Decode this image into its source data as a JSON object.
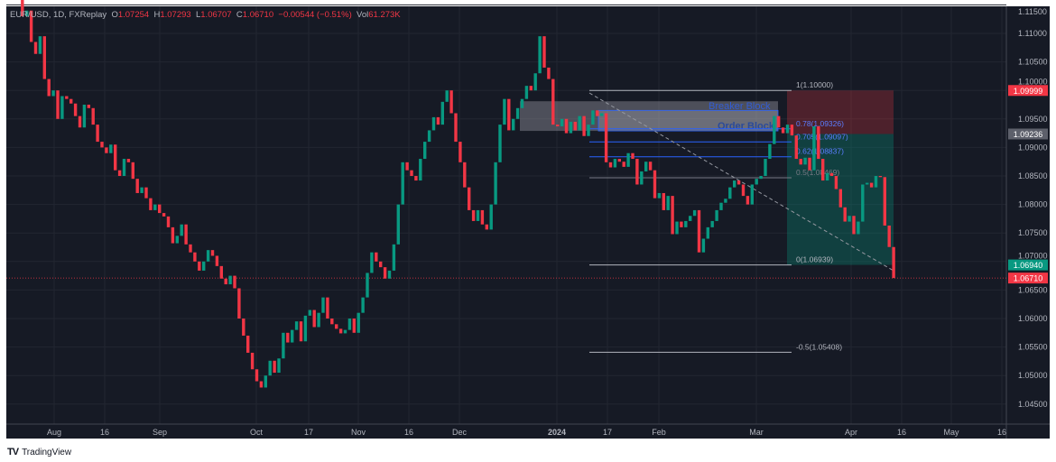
{
  "header": {
    "symbol": "EUR/USD, 1D, FXReplay",
    "o_label": "O",
    "open": "1.07254",
    "h_label": "H",
    "high": "1.07293",
    "l_label": "L",
    "low": "1.06707",
    "c_label": "C",
    "close": "1.06710",
    "change": "−0.00544 (−0.51%)",
    "vol_label": "Vol",
    "volume": "61.273K"
  },
  "branding": {
    "logo_text": "TradingView"
  },
  "colors": {
    "background": "#161a25",
    "grid": "#222631",
    "up": "#089981",
    "down": "#f23645",
    "text": "#b2b5be",
    "fib_blue": "#2962ff"
  },
  "chart_data": {
    "type": "candlestick",
    "symbol": "EUR/USD",
    "interval": "1D",
    "ylim": [
      1.0415,
      1.1148
    ],
    "y_ticks": [
      "1.11500",
      "1.11000",
      "1.10500",
      "1.10000",
      "1.09500",
      "1.09000",
      "1.08500",
      "1.08000",
      "1.07500",
      "1.07000",
      "1.06500",
      "1.06000",
      "1.05500",
      "1.05000",
      "1.04500"
    ],
    "x_ticks": [
      "Aug",
      "16",
      "Sep",
      "Oct",
      "17",
      "Nov",
      "16",
      "Dec",
      "2024",
      "17",
      "Feb",
      "Mar",
      "Apr",
      "16",
      "May",
      "16"
    ],
    "first_open": 1.125,
    "closes": [
      1.1225,
      1.119,
      1.113,
      1.114,
      1.1085,
      1.1064,
      1.1095,
      1.102,
      1.099,
      1.1,
      1.095,
      1.099,
      1.0985,
      1.0977,
      1.0955,
      1.0935,
      1.0975,
      1.0969,
      1.094,
      1.091,
      1.09,
      1.089,
      1.0905,
      1.086,
      1.085,
      1.088,
      1.0874,
      1.0845,
      1.082,
      1.083,
      1.0811,
      1.079,
      1.08,
      1.0785,
      1.0779,
      1.076,
      1.0732,
      1.0745,
      1.0765,
      1.073,
      1.0716,
      1.07,
      1.0684,
      1.07,
      1.072,
      1.071,
      1.0692,
      1.067,
      1.066,
      1.0675,
      1.0653,
      1.06,
      1.057,
      1.054,
      1.0511,
      1.049,
      1.0479,
      1.05,
      1.0526,
      1.0505,
      1.053,
      1.0575,
      1.0558,
      1.058,
      1.0595,
      1.056,
      1.0605,
      1.0615,
      1.0585,
      1.061,
      1.0637,
      1.06,
      1.059,
      1.0582,
      1.0574,
      1.058,
      1.06,
      1.0575,
      1.061,
      1.0637,
      1.068,
      1.0716,
      1.07,
      1.069,
      1.067,
      1.0684,
      1.073,
      1.08,
      1.0874,
      1.086,
      1.085,
      1.0842,
      1.088,
      1.091,
      1.093,
      1.0953,
      1.094,
      1.098,
      1.1,
      1.096,
      1.091,
      1.0874,
      1.083,
      1.079,
      1.0771,
      1.079,
      1.0765,
      1.0756,
      1.08,
      1.0874,
      1.094,
      1.0985,
      1.093,
      1.095,
      1.0969,
      1.0985,
      1.1008,
      1.1,
      1.103,
      1.1095,
      1.104,
      1.102,
      1.094,
      1.0937,
      1.095,
      1.0925,
      1.0945,
      1.093,
      1.0955,
      1.092,
      1.094,
      1.0965,
      1.0955,
      1.096,
      1.0874,
      1.0865,
      1.088,
      1.0875,
      1.0866,
      1.089,
      1.088,
      1.0835,
      1.0858,
      1.0875,
      1.086,
      1.0811,
      1.082,
      1.079,
      1.0815,
      1.0748,
      1.077,
      1.076,
      1.0771,
      1.078,
      1.079,
      1.0716,
      1.074,
      1.076,
      1.0771,
      1.079,
      1.0803,
      1.081,
      1.083,
      1.0842,
      1.0835,
      1.0815,
      1.08,
      1.0835,
      1.0845,
      1.085,
      1.088,
      1.0906,
      1.0955,
      1.0935,
      1.0925,
      1.094,
      1.0921,
      1.088,
      1.087,
      1.0882,
      1.086,
      1.0937,
      1.088,
      1.0842,
      1.0855,
      1.085,
      1.0827,
      1.0795,
      1.077,
      1.078,
      1.0748,
      1.077,
      1.0835,
      1.0838,
      1.083,
      1.085,
      1.0848,
      1.0763,
      1.07254,
      1.0671
    ],
    "price_badges": [
      {
        "value": "1.09999",
        "color": "#f23645"
      },
      {
        "value": "1.09236",
        "color": "#5d606b"
      },
      {
        "value": "1.06940",
        "color": "#089981"
      },
      {
        "value": "1.06710",
        "color": "#f23645"
      }
    ],
    "current_price": 1.0671,
    "annotations": {
      "breaker_block": {
        "label": "Breaker Block",
        "top": 1.0981,
        "bottom": 1.0929
      },
      "order_block": {
        "label": "Order Block",
        "top": 1.0965,
        "bottom": 1.0929
      },
      "fib_levels": [
        {
          "level": 1,
          "price": 1.1,
          "label": "1(1.10000)",
          "color": "#b2b5be"
        },
        {
          "level": 0.78,
          "price": 1.09326,
          "label": "0.78(1.09326)",
          "color": "#2962ff"
        },
        {
          "level": 0.705,
          "price": 1.09097,
          "label": "0.705(1.09097)",
          "color": "#2962ff"
        },
        {
          "level": 0.62,
          "price": 1.08837,
          "label": "0.62(1.08837)",
          "color": "#2962ff"
        },
        {
          "level": 0.5,
          "price": 1.08469,
          "label": "0.5(1.08469)",
          "color": "#787b86"
        },
        {
          "level": 0,
          "price": 1.06939,
          "label": "0(1.06939)",
          "color": "#b2b5be"
        },
        {
          "level": -0.5,
          "price": 1.05408,
          "label": "-0.5(1.05408)",
          "color": "#b2b5be"
        }
      ],
      "position": {
        "entry": 1.09236,
        "stop": 1.09999,
        "target": 1.0694
      }
    }
  }
}
